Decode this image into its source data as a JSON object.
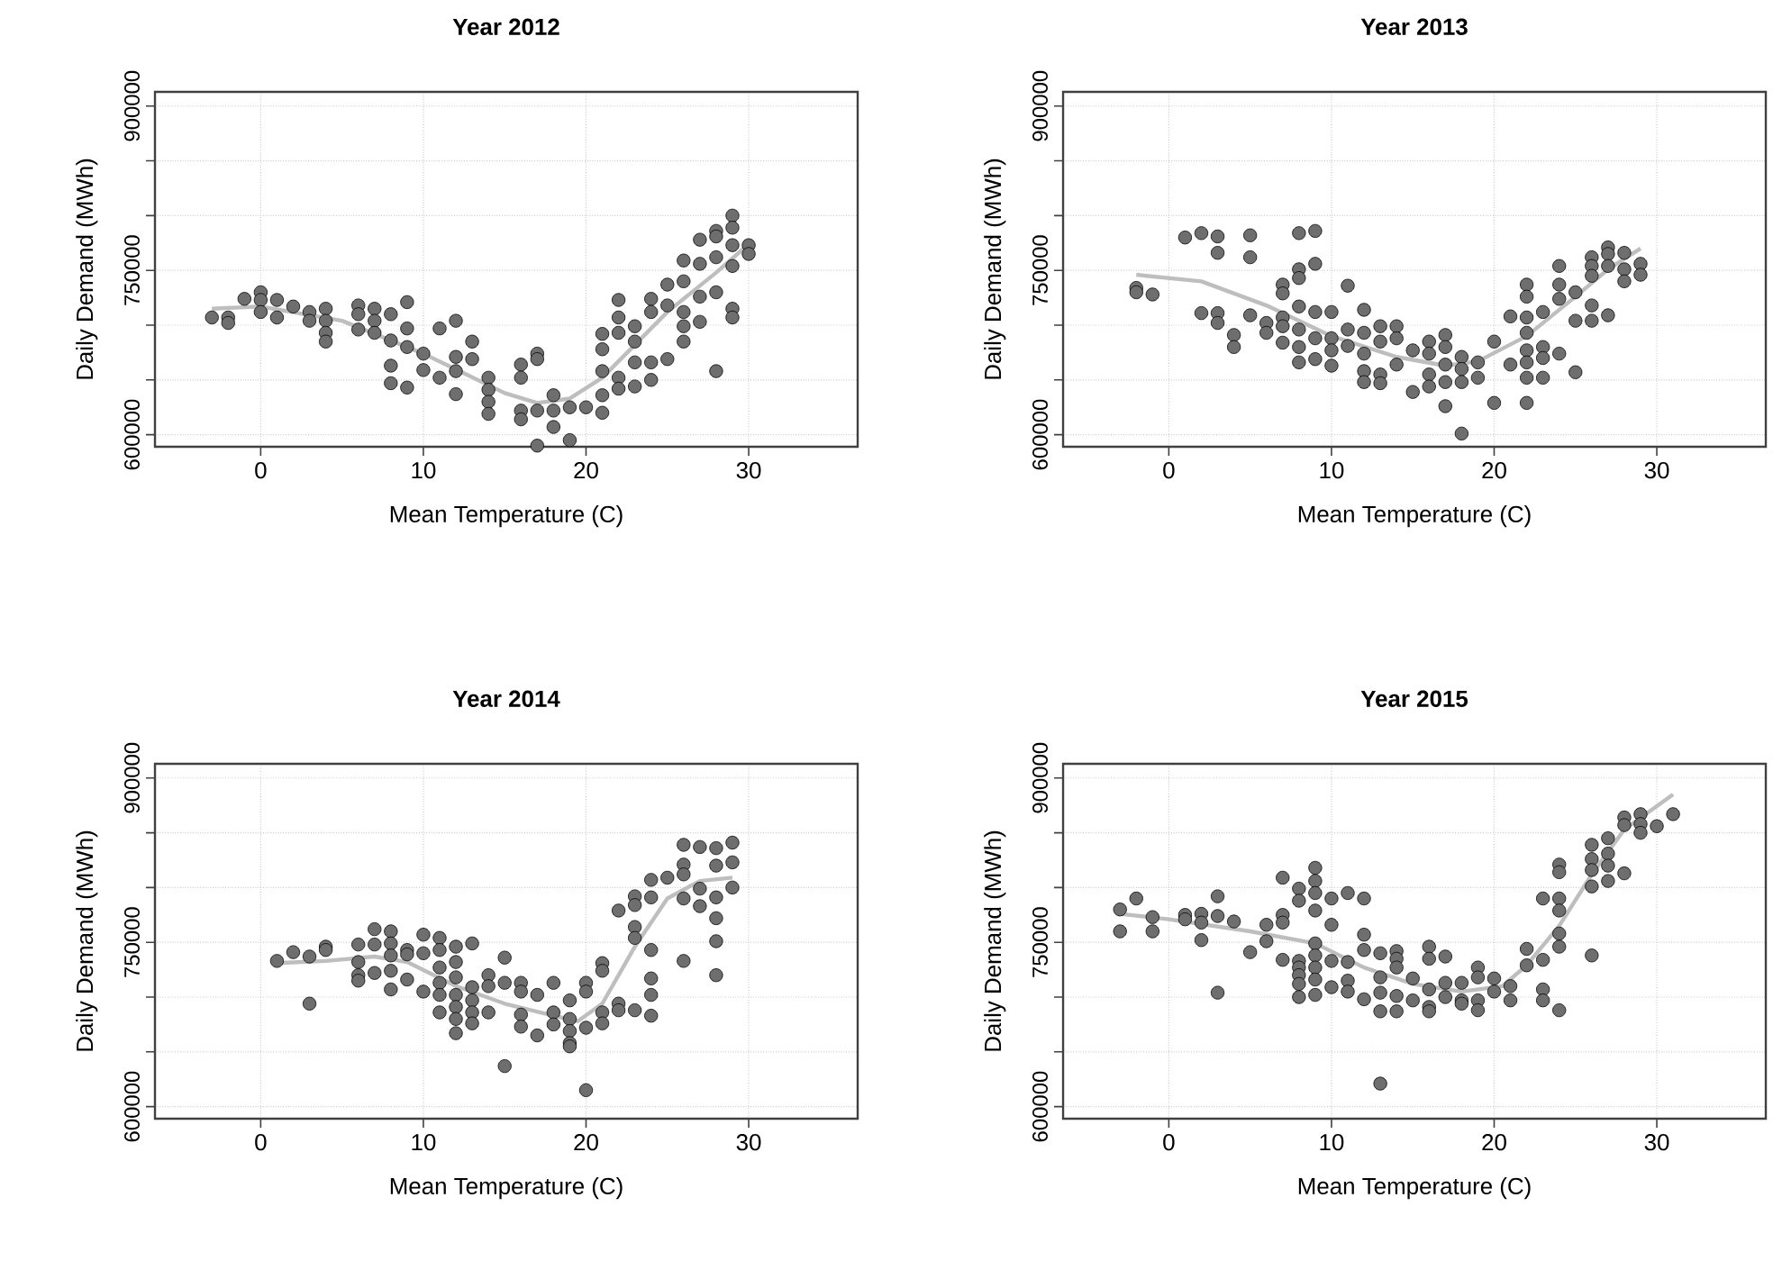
{
  "chart_data": [
    {
      "type": "scatter",
      "title": "Year 2012",
      "xlabel": "Mean Temperature (C)",
      "ylabel": "Daily Demand (MWh)",
      "xlim": [
        -6.5,
        36.7
      ],
      "ylim": [
        589000,
        913000
      ],
      "xticks": [
        0,
        10,
        20,
        30
      ],
      "yticks": [
        600000,
        {
          "value": 650000,
          "label": null
        },
        {
          "value": 700000,
          "label": null
        },
        750000,
        {
          "value": 800000,
          "label": null
        },
        {
          "value": 850000,
          "label": null
        },
        900000
      ],
      "grid": true,
      "marker": "circle",
      "series": [
        {
          "color": "#6e6e6e",
          "x": [
            -3,
            -2,
            -2,
            -1,
            0,
            0,
            0,
            1,
            1,
            2,
            3,
            3,
            4,
            4,
            4,
            4,
            6,
            6,
            6,
            7,
            7,
            7,
            8,
            8,
            8,
            8,
            9,
            9,
            9,
            9,
            10,
            10,
            11,
            11,
            12,
            12,
            12,
            12,
            13,
            13,
            14,
            14,
            14,
            14,
            16,
            16,
            16,
            16,
            17,
            17,
            17,
            17,
            18,
            18,
            18,
            19,
            19,
            20,
            21,
            21,
            21,
            21,
            21,
            22,
            22,
            22,
            22,
            22,
            23,
            23,
            23,
            23,
            24,
            24,
            24,
            24,
            25,
            25,
            25,
            26,
            26,
            26,
            26,
            26,
            27,
            27,
            27,
            27,
            28,
            28,
            28,
            28,
            28,
            29,
            29,
            29,
            29,
            29,
            29,
            30,
            30
          ],
          "values": [
            707000,
            707000,
            702000,
            724000,
            730000,
            723000,
            712000,
            723000,
            707000,
            717000,
            712000,
            704000,
            715000,
            704000,
            693000,
            685000,
            718000,
            710000,
            696000,
            715000,
            704000,
            693000,
            710000,
            686000,
            663000,
            647000,
            721000,
            697000,
            680000,
            643000,
            674000,
            659000,
            697000,
            652000,
            704000,
            671000,
            658000,
            637000,
            685000,
            669000,
            652000,
            641000,
            630000,
            619000,
            664000,
            652000,
            622000,
            614000,
            674000,
            669000,
            622000,
            590000,
            636000,
            622000,
            607000,
            625000,
            595000,
            625000,
            692000,
            678000,
            658000,
            636000,
            620000,
            723000,
            707000,
            693000,
            652000,
            642000,
            699000,
            685000,
            666000,
            644000,
            724000,
            712000,
            666000,
            650000,
            737000,
            718000,
            669000,
            759000,
            740000,
            712000,
            699000,
            685000,
            778000,
            756000,
            726000,
            703000,
            786000,
            781000,
            762000,
            730000,
            658000,
            800000,
            789000,
            773000,
            754000,
            715000,
            707000,
            773000,
            765000
          ]
        },
        {
          "type": "line",
          "marker": "none",
          "color": "#bebebe",
          "x": [
            -3,
            0,
            5,
            10,
            15,
            17,
            19,
            21,
            25,
            28,
            30
          ],
          "values": [
            715000,
            717000,
            704000,
            674000,
            638000,
            629000,
            633000,
            652000,
            712000,
            748000,
            774000
          ]
        }
      ]
    },
    {
      "type": "scatter",
      "title": "Year 2013",
      "xlabel": "Mean Temperature (C)",
      "ylabel": "Daily Demand (MWh)",
      "xlim": [
        -6.5,
        36.7
      ],
      "ylim": [
        589000,
        913000
      ],
      "xticks": [
        0,
        10,
        20,
        30
      ],
      "yticks": [
        600000,
        {
          "value": 650000,
          "label": null
        },
        {
          "value": 700000,
          "label": null
        },
        750000,
        {
          "value": 800000,
          "label": null
        },
        {
          "value": 850000,
          "label": null
        },
        900000
      ],
      "grid": true,
      "marker": "circle",
      "series": [
        {
          "color": "#6e6e6e",
          "x": [
            -2,
            -2,
            -1,
            1,
            2,
            2,
            3,
            3,
            3,
            3,
            4,
            4,
            5,
            5,
            5,
            6,
            6,
            7,
            7,
            7,
            7,
            7,
            8,
            8,
            8,
            8,
            8,
            8,
            8,
            9,
            9,
            9,
            9,
            9,
            10,
            10,
            10,
            10,
            11,
            11,
            11,
            12,
            12,
            12,
            12,
            12,
            13,
            13,
            13,
            13,
            14,
            14,
            14,
            15,
            15,
            16,
            16,
            16,
            16,
            17,
            17,
            17,
            17,
            17,
            18,
            18,
            18,
            18,
            19,
            19,
            20,
            20,
            21,
            21,
            22,
            22,
            22,
            22,
            22,
            22,
            22,
            22,
            23,
            23,
            23,
            23,
            24,
            24,
            24,
            24,
            25,
            25,
            25,
            26,
            26,
            26,
            26,
            26,
            27,
            27,
            27,
            27,
            28,
            28,
            28,
            29,
            29
          ],
          "values": [
            734000,
            730000,
            728000,
            780000,
            784000,
            711000,
            781000,
            766000,
            711000,
            702000,
            691000,
            680000,
            782000,
            762000,
            709000,
            702000,
            693000,
            737000,
            729000,
            707000,
            699000,
            684000,
            784000,
            751000,
            743000,
            717000,
            696000,
            680000,
            666000,
            786000,
            756000,
            712000,
            688000,
            669000,
            712000,
            688000,
            677000,
            663000,
            736000,
            696000,
            681000,
            714000,
            693000,
            674000,
            658000,
            648000,
            699000,
            685000,
            655000,
            647000,
            699000,
            688000,
            664000,
            677000,
            639000,
            685000,
            674000,
            655000,
            644000,
            691000,
            680000,
            664000,
            648000,
            626000,
            671000,
            660000,
            648000,
            601000,
            666000,
            652000,
            685000,
            629000,
            708000,
            664000,
            737000,
            726000,
            707000,
            693000,
            677000,
            666000,
            652000,
            629000,
            712000,
            680000,
            670000,
            652000,
            754000,
            737000,
            724000,
            674000,
            730000,
            704000,
            657000,
            762000,
            754000,
            745000,
            718000,
            704000,
            771000,
            765000,
            754000,
            709000,
            766000,
            751000,
            740000,
            756000,
            746000
          ]
        },
        {
          "type": "line",
          "marker": "none",
          "color": "#bebebe",
          "x": [
            -2,
            2,
            6,
            10,
            14,
            17,
            19,
            22,
            25,
            27,
            29
          ],
          "values": [
            746000,
            740000,
            718000,
            690000,
            671000,
            663000,
            667000,
            690000,
            726000,
            751000,
            770000
          ]
        }
      ]
    },
    {
      "type": "scatter",
      "title": "Year 2014",
      "xlabel": "Mean Temperature (C)",
      "ylabel": "Daily Demand (MWh)",
      "xlim": [
        -6.5,
        36.7
      ],
      "ylim": [
        589000,
        913000
      ],
      "xticks": [
        0,
        10,
        20,
        30
      ],
      "yticks": [
        600000,
        {
          "value": 650000,
          "label": null
        },
        {
          "value": 700000,
          "label": null
        },
        750000,
        {
          "value": 800000,
          "label": null
        },
        {
          "value": 850000,
          "label": null
        },
        900000
      ],
      "grid": true,
      "marker": "circle",
      "series": [
        {
          "color": "#6e6e6e",
          "x": [
            1,
            2,
            3,
            3,
            4,
            4,
            6,
            6,
            6,
            6,
            7,
            7,
            7,
            8,
            8,
            8,
            8,
            8,
            9,
            9,
            9,
            10,
            10,
            10,
            11,
            11,
            11,
            11,
            11,
            11,
            12,
            12,
            12,
            12,
            12,
            12,
            12,
            13,
            13,
            13,
            13,
            13,
            14,
            14,
            14,
            15,
            15,
            15,
            16,
            16,
            16,
            16,
            17,
            17,
            18,
            18,
            18,
            19,
            19,
            19,
            19,
            19,
            20,
            20,
            20,
            20,
            21,
            21,
            21,
            21,
            22,
            22,
            22,
            23,
            23,
            23,
            23,
            23,
            24,
            24,
            24,
            24,
            24,
            24,
            25,
            26,
            26,
            26,
            26,
            26,
            27,
            27,
            27,
            28,
            28,
            28,
            28,
            28,
            28,
            29,
            29,
            29
          ],
          "values": [
            733000,
            741000,
            737000,
            694000,
            746000,
            743000,
            748000,
            732000,
            720000,
            715000,
            762000,
            748000,
            722000,
            760000,
            749000,
            738000,
            724000,
            707000,
            743000,
            739000,
            716000,
            757000,
            740000,
            705000,
            754000,
            743000,
            727000,
            713000,
            702000,
            686000,
            746000,
            732000,
            718000,
            702000,
            691000,
            680000,
            667000,
            749000,
            709000,
            697000,
            686000,
            676000,
            720000,
            710000,
            686000,
            736000,
            713000,
            637000,
            713000,
            705000,
            684000,
            673000,
            702000,
            665000,
            713000,
            686000,
            675000,
            697000,
            680000,
            669000,
            658000,
            655000,
            713000,
            705000,
            672000,
            615000,
            731000,
            724000,
            686000,
            676000,
            779000,
            694000,
            688000,
            792000,
            784000,
            764000,
            754000,
            688000,
            807000,
            791000,
            743000,
            717000,
            702000,
            683000,
            809000,
            839000,
            821000,
            812000,
            790000,
            733000,
            837000,
            799000,
            783000,
            836000,
            820000,
            791000,
            772000,
            751000,
            720000,
            841000,
            823000,
            800000
          ]
        },
        {
          "type": "line",
          "marker": "none",
          "color": "#bebebe",
          "x": [
            1,
            4,
            7,
            9,
            12,
            15,
            18,
            19.5,
            21,
            23,
            25,
            27,
            29
          ],
          "values": [
            731000,
            733000,
            737000,
            732000,
            710000,
            694000,
            683000,
            678000,
            694000,
            746000,
            790000,
            806000,
            809000
          ]
        }
      ]
    },
    {
      "type": "scatter",
      "title": "Year 2015",
      "xlabel": "Mean Temperature (C)",
      "ylabel": "Daily Demand (MWh)",
      "xlim": [
        -6.5,
        36.7
      ],
      "ylim": [
        589000,
        913000
      ],
      "xticks": [
        0,
        10,
        20,
        30
      ],
      "yticks": [
        600000,
        {
          "value": 650000,
          "label": null
        },
        {
          "value": 700000,
          "label": null
        },
        750000,
        {
          "value": 800000,
          "label": null
        },
        {
          "value": 850000,
          "label": null
        },
        900000
      ],
      "grid": true,
      "marker": "circle",
      "series": [
        {
          "color": "#6e6e6e",
          "x": [
            -3,
            -3,
            -2,
            -1,
            -1,
            1,
            1,
            2,
            2,
            2,
            3,
            3,
            3,
            4,
            5,
            6,
            6,
            7,
            7,
            7,
            7,
            8,
            8,
            8,
            8,
            8,
            8,
            8,
            9,
            9,
            9,
            9,
            9,
            9,
            9,
            9,
            9,
            10,
            10,
            10,
            10,
            11,
            11,
            11,
            11,
            12,
            12,
            12,
            12,
            13,
            13,
            13,
            13,
            13,
            14,
            14,
            14,
            14,
            14,
            15,
            15,
            16,
            16,
            16,
            16,
            16,
            17,
            17,
            17,
            18,
            18,
            18,
            19,
            19,
            19,
            19,
            20,
            20,
            21,
            21,
            22,
            22,
            23,
            23,
            23,
            23,
            24,
            24,
            24,
            24,
            24,
            24,
            24,
            26,
            26,
            26,
            26,
            26,
            27,
            27,
            27,
            27,
            28,
            28,
            28,
            29,
            29,
            29,
            30,
            31
          ],
          "values": [
            780000,
            760000,
            790000,
            773000,
            760000,
            775000,
            771000,
            776000,
            768000,
            752000,
            792000,
            774000,
            704000,
            769000,
            741000,
            766000,
            751000,
            809000,
            775000,
            768000,
            734000,
            799000,
            788000,
            733000,
            727000,
            720000,
            712000,
            700000,
            818000,
            806000,
            795000,
            779000,
            749000,
            738000,
            727000,
            716000,
            702000,
            790000,
            766000,
            733000,
            709000,
            795000,
            732000,
            715000,
            705000,
            790000,
            757000,
            743000,
            698000,
            740000,
            718000,
            704000,
            687000,
            621000,
            742000,
            735000,
            727000,
            701000,
            687000,
            717000,
            697000,
            746000,
            735000,
            707000,
            691000,
            687000,
            737000,
            713000,
            700000,
            713000,
            697000,
            694000,
            727000,
            718000,
            697000,
            688000,
            717000,
            705000,
            710000,
            697000,
            744000,
            729000,
            790000,
            734000,
            707000,
            697000,
            821000,
            814000,
            790000,
            779000,
            758000,
            746000,
            688000,
            839000,
            826000,
            816000,
            801000,
            738000,
            845000,
            831000,
            820000,
            806000,
            864000,
            857000,
            813000,
            867000,
            858000,
            850000,
            856000,
            867000
          ]
        },
        {
          "type": "line",
          "marker": "none",
          "color": "#bebebe",
          "x": [
            -3,
            0,
            5,
            9,
            12,
            15,
            18,
            20.5,
            22,
            24,
            26,
            28,
            31
          ],
          "values": [
            776000,
            771000,
            760000,
            749000,
            727000,
            712000,
            705000,
            710000,
            729000,
            765000,
            812000,
            853000,
            885000
          ]
        }
      ]
    }
  ]
}
